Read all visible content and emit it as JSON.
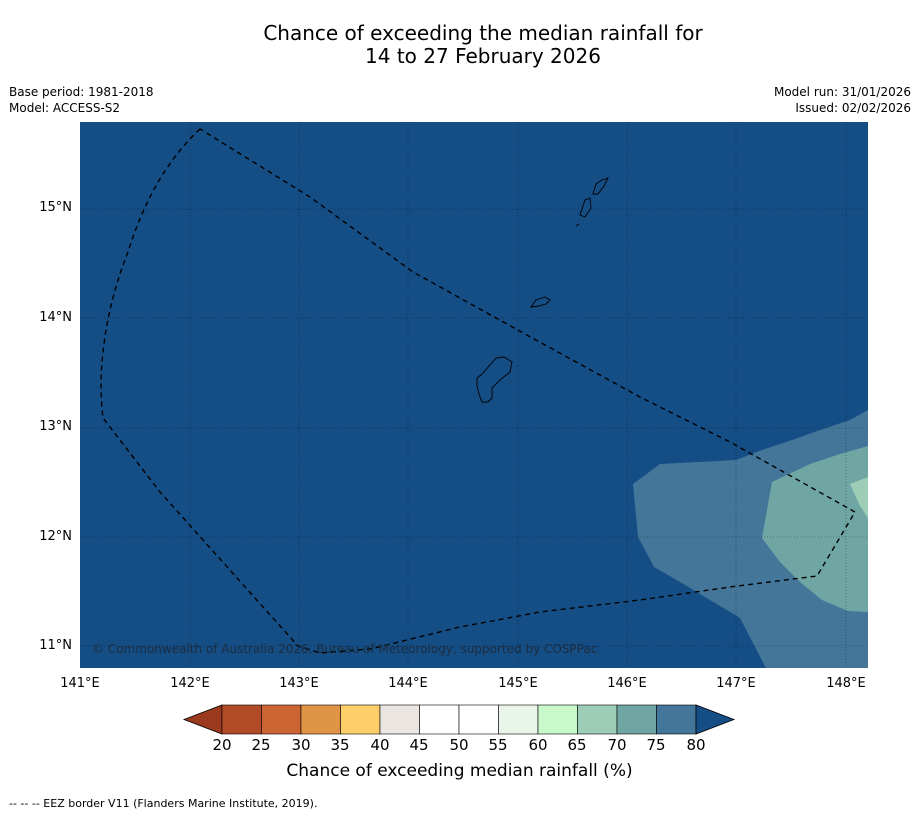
{
  "title": {
    "line1": "Chance of exceeding the median rainfall for",
    "line2": "14 to 27 February 2026"
  },
  "meta_left": {
    "base_period": "Base period: 1981-2018",
    "model": "Model: ACCESS-S2"
  },
  "meta_right": {
    "model_run": "Model run: 31/01/2026",
    "issued": "Issued: 02/02/2026"
  },
  "map": {
    "lat_labels": [
      "15°N",
      "14°N",
      "13°N",
      "12°N",
      "11°N"
    ],
    "lon_labels": [
      "141°E",
      "142°E",
      "143°E",
      "144°E",
      "145°E",
      "146°E",
      "147°E",
      "148°E"
    ],
    "copyright": "© Commonwealth of Australia 2026, Bureau of Meteorology, supported by COSPPac"
  },
  "colorbar": {
    "ticks": [
      "20",
      "25",
      "30",
      "35",
      "40",
      "45",
      "50",
      "55",
      "60",
      "65",
      "70",
      "75",
      "80"
    ],
    "colors": [
      "#b14a26",
      "#cd6533",
      "#e09446",
      "#fdcf6a",
      "#ebe6e1",
      "#ffffff",
      "#ffffff",
      "#eaf5e9",
      "#c9f8cb",
      "#9dcdb6",
      "#6fa6a4",
      "#44769a"
    ],
    "below_color": "#9c3a1f",
    "above_color": "#154d85",
    "label": "Chance of exceeding median rainfall (%)"
  },
  "footnote": "--  --  -- EEZ border V11 (Flanders Marine Institute, 2019)."
}
